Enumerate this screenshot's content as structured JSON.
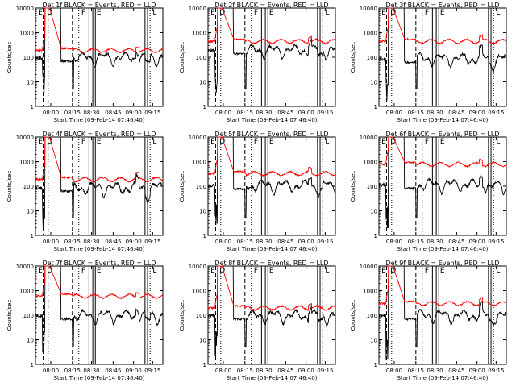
{
  "chart_data": [
    {
      "type": "line",
      "title": "Det 1f BLACK = Events, RED = LLD",
      "base_black": 100,
      "base_red": 190
    },
    {
      "type": "line",
      "title": "Det 2f BLACK = Events, RED = LLD",
      "base_black": 200,
      "base_red": 450
    },
    {
      "type": "line",
      "title": "Det 3f BLACK = Events, RED = LLD",
      "base_black": 90,
      "base_red": 450
    },
    {
      "type": "line",
      "title": "Det 4f BLACK = Events, RED = LLD",
      "base_black": 90,
      "base_red": 190
    },
    {
      "type": "line",
      "title": "Det 5f BLACK = Events, RED = LLD",
      "base_black": 110,
      "base_red": 330
    },
    {
      "type": "line",
      "title": "Det 6f BLACK = Events, RED = LLD",
      "base_black": 120,
      "base_red": 780
    },
    {
      "type": "line",
      "title": "Det 7f BLACK = Events, RED = LLD",
      "base_black": 100,
      "base_red": 600
    },
    {
      "type": "line",
      "title": "Det 8f BLACK = Events, RED = LLD",
      "base_black": 100,
      "base_red": 200
    },
    {
      "type": "line",
      "title": "Det 9f BLACK = Events, RED = LLD",
      "base_black": 100,
      "base_red": 300
    }
  ],
  "shared": {
    "ylabel": "Counts/sec",
    "xlabel": "Start Time (09-Feb-14 07:46:40)",
    "xticks": [
      "08:00",
      "08:15",
      "08:30",
      "08:45",
      "09:00",
      "09:15"
    ],
    "yticks": [
      "1",
      "10",
      "100",
      "1000",
      "10000"
    ],
    "ylim": [
      1,
      10000
    ],
    "yscale": "log",
    "markers": [
      "E",
      "D",
      "F",
      "E",
      "L"
    ],
    "colors": {
      "events": "#000000",
      "lld": "#ff0000"
    }
  }
}
